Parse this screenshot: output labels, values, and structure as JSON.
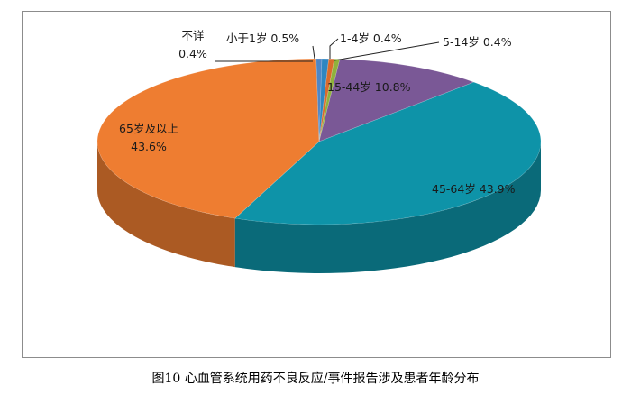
{
  "chart_data": {
    "type": "pie",
    "style": "3d",
    "title": "",
    "slices": [
      {
        "label": "小于1岁",
        "value": 0.5,
        "display": "小于1岁 0.5%",
        "color": "#2e86c1"
      },
      {
        "label": "1-4岁",
        "value": 0.4,
        "display": "1-4岁 0.4%",
        "color": "#d96b2c"
      },
      {
        "label": "5-14岁",
        "value": 0.4,
        "display": "5-14岁 0.4%",
        "color": "#8fb23c"
      },
      {
        "label": "15-44岁",
        "value": 10.8,
        "display": "15-44岁 10.8%",
        "color": "#7a5896"
      },
      {
        "label": "45-64岁",
        "value": 43.9,
        "display": "45-64岁 43.9%",
        "color": "#0e93a8"
      },
      {
        "label": "65岁及以上",
        "value": 43.6,
        "display_lines": [
          "65岁及以上",
          "43.6%"
        ],
        "color": "#ee7d31"
      },
      {
        "label": "不详",
        "value": 0.4,
        "display_lines": [
          "不详",
          "0.4%"
        ],
        "color": "#4f86c6"
      }
    ]
  },
  "caption": "图10 心血管系统用药不良反应/事件报告涉及患者年龄分布"
}
